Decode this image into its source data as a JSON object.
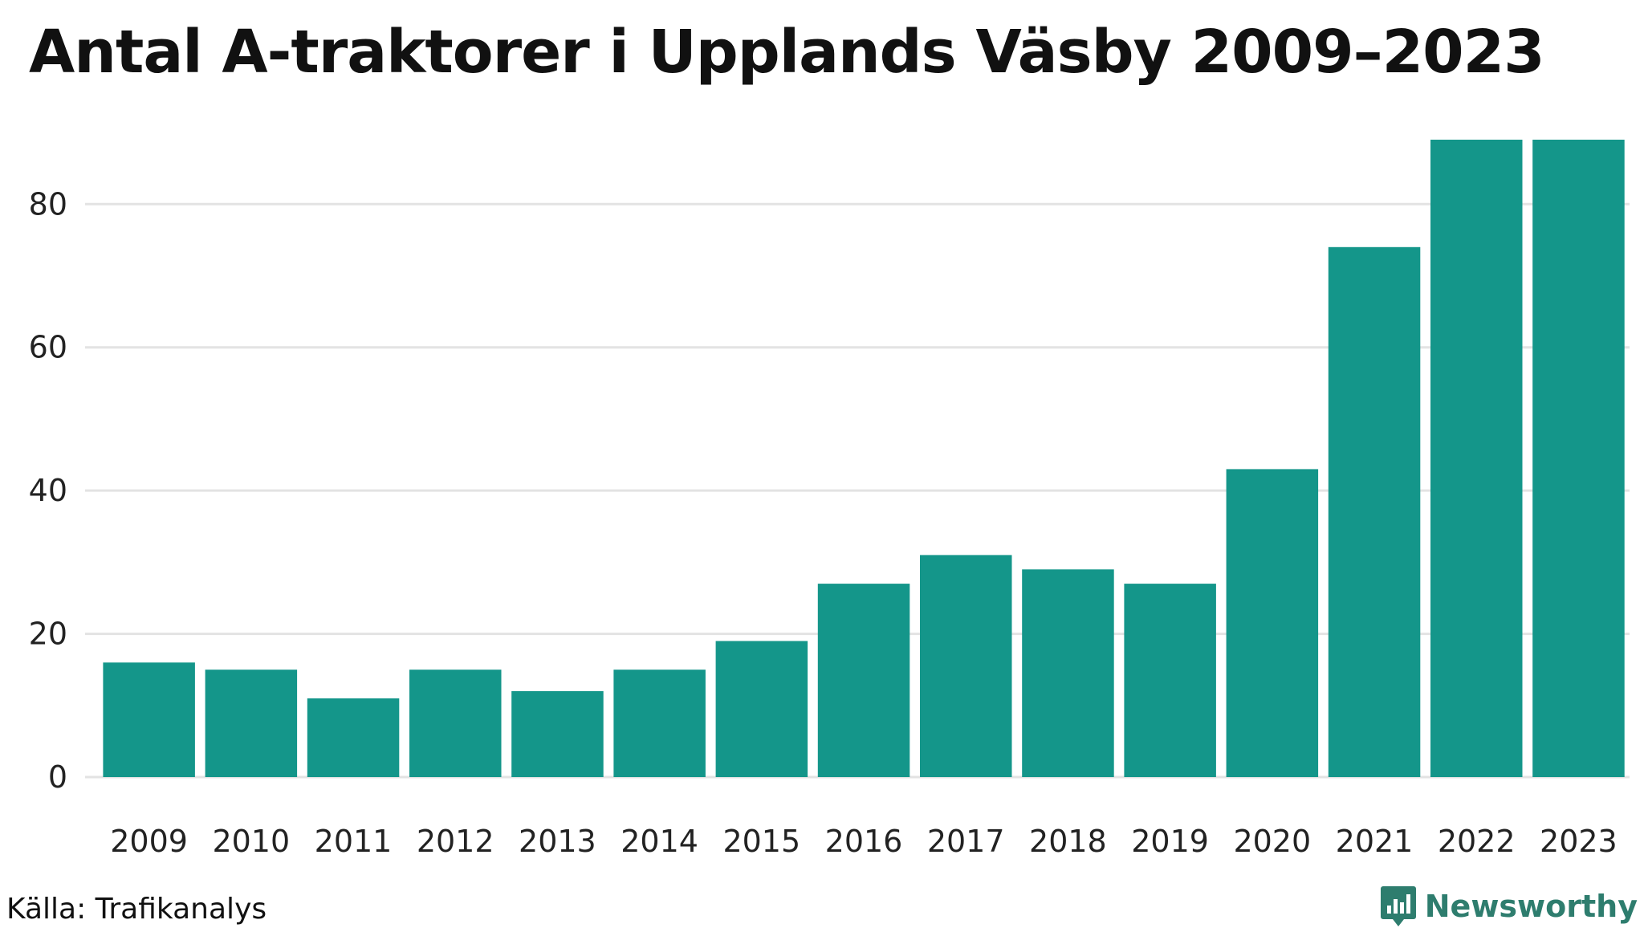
{
  "chart_data": {
    "type": "bar",
    "title": "Antal A-traktorer i Upplands Väsby 2009–2023",
    "xlabel": "",
    "ylabel": "",
    "categories": [
      "2009",
      "2010",
      "2011",
      "2012",
      "2013",
      "2014",
      "2015",
      "2016",
      "2017",
      "2018",
      "2019",
      "2020",
      "2021",
      "2022",
      "2023"
    ],
    "values": [
      16,
      15,
      11,
      15,
      12,
      15,
      19,
      27,
      31,
      29,
      27,
      43,
      74,
      89,
      89
    ],
    "y_ticks": [
      "0",
      "20",
      "40",
      "60",
      "80"
    ],
    "ylim": [
      0,
      89
    ],
    "grid": "horizontal",
    "bar_color": "#14968a",
    "grid_color": "#e3e3e3"
  },
  "footer": {
    "source": "Källa: Trafikanalys",
    "brand": "Newsworthy",
    "brand_icon": "newsworthy-logo-icon",
    "brand_color": "#2e7d6e"
  }
}
